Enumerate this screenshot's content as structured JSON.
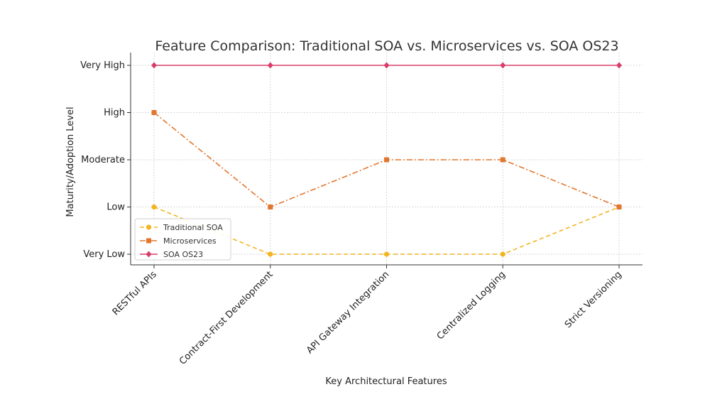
{
  "chart_data": {
    "type": "line",
    "title": "Feature Comparison: Traditional SOA vs. Microservices vs. SOA OS23",
    "xlabel": "Key Architectural Features",
    "ylabel": "Maturity/Adoption Level",
    "categories": [
      "RESTful APIs",
      "Contract-First Development",
      "API Gateway Integration",
      "Centralized Logging",
      "Strict Versioning"
    ],
    "y_levels": [
      "Very Low",
      "Low",
      "Moderate",
      "High",
      "Very High"
    ],
    "ylim": [
      1,
      5
    ],
    "grid": true,
    "legend_position": "bottom-left",
    "series": [
      {
        "name": "Traditional SOA",
        "values": [
          2,
          1,
          1,
          1,
          2
        ],
        "color": "#f2b51f",
        "dash": "dashed",
        "marker": "circle"
      },
      {
        "name": "Microservices",
        "values": [
          4,
          2,
          3,
          3,
          2
        ],
        "color": "#e2762e",
        "dash": "dashdot",
        "marker": "square"
      },
      {
        "name": "SOA OS23",
        "values": [
          5,
          5,
          5,
          5,
          5
        ],
        "color": "#d93e6a",
        "dash": "solid",
        "marker": "diamond"
      }
    ]
  }
}
